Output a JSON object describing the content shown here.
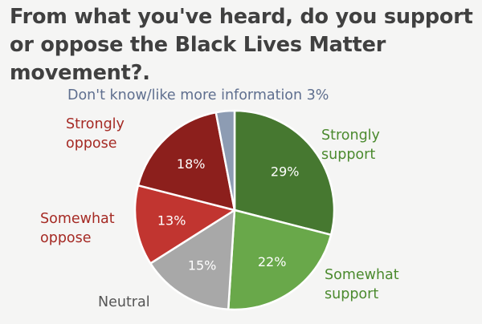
{
  "title": "From what you've heard, do you support or oppose the Black Lives Matter movement?.",
  "chart_data": {
    "type": "pie",
    "title": "From what you've heard, do you support or oppose the Black Lives Matter movement?.",
    "start_angle_deg": -90,
    "slices": [
      {
        "label_lines": [
          "Strongly",
          "support"
        ],
        "value": 29,
        "value_label": "29%",
        "color": "#467830",
        "label_color": "#4b8a2e"
      },
      {
        "label_lines": [
          "Somewhat",
          "support"
        ],
        "value": 22,
        "value_label": "22%",
        "color": "#69a84a",
        "label_color": "#4b8a2e"
      },
      {
        "label_lines": [
          "Neutral"
        ],
        "value": 15,
        "value_label": "15%",
        "color": "#a8a8a8",
        "label_color": "#555555"
      },
      {
        "label_lines": [
          "Somewhat",
          "oppose"
        ],
        "value": 13,
        "value_label": "13%",
        "color": "#c13530",
        "label_color": "#a52a24"
      },
      {
        "label_lines": [
          "Strongly",
          "oppose"
        ],
        "value": 18,
        "value_label": "18%",
        "color": "#8c1f1c",
        "label_color": "#a52a24"
      },
      {
        "label_lines": [
          "Don't know/like more information 3%"
        ],
        "value": 3,
        "value_label": "",
        "color": "#8d9cb3",
        "label_color": "#5f6f8f"
      }
    ]
  }
}
